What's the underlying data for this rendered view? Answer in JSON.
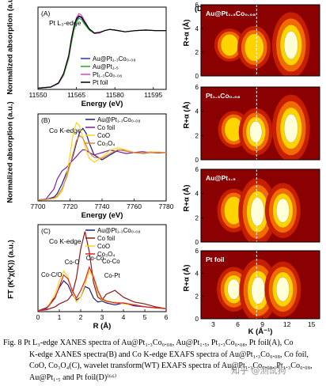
{
  "figure": {
    "caption_lines": [
      "Fig. 8   Pt L₃-edge XANES spectra of Au@Pt₁.₃Co₀.₀₈, Au@Pt₁.₅, Pt₁.₃Co₀.₀₈, Pt foil(A), Co",
      "K-edge XANES spectra(B) and Co K-edge EXAFS spectra of Au@Pt₁.₃Co₀.₀₈, Co foil,",
      "CoO, Co₃O₄(C), wavelet transform(WT) EXAFS spectra of Au@Pt₁.₃Co₀.₀₈, Pt₁.₃Co₀.₀₈,",
      "Au@Pt₁.₅ and Pt foil(D)⁽⁶⁶⁾"
    ],
    "watermark": "知乎 @测试狗"
  },
  "chart_data": [
    {
      "panel": "(A)",
      "type": "line",
      "annotation": "Pt L₃-edge",
      "xlabel": "Energy (eV)",
      "ylabel": "Normalized absorption (a.u.)",
      "xlim": [
        11550,
        11600
      ],
      "ylim": [
        0,
        1.4
      ],
      "x_ticks": [
        11550,
        11565,
        11580,
        11595
      ],
      "legend_position": "right",
      "x": [
        11550,
        11555,
        11558,
        11560,
        11562,
        11563,
        11564,
        11565,
        11566,
        11567,
        11568,
        11570,
        11572,
        11574,
        11576,
        11578,
        11580,
        11584,
        11588,
        11592,
        11596,
        11600
      ],
      "series": [
        {
          "name": "Au@Pt₁.₃Co₀.₀₈",
          "color": "#2233cc",
          "values": [
            0.02,
            0.04,
            0.1,
            0.25,
            0.55,
            0.8,
            1.02,
            1.18,
            1.24,
            1.22,
            1.15,
            1.02,
            0.95,
            0.96,
            1.0,
            1.02,
            1.01,
            0.98,
            1.0,
            1.01,
            1.0,
            1.0
          ]
        },
        {
          "name": "Au@Pt₁.₅",
          "color": "#1aa81a",
          "values": [
            0.02,
            0.04,
            0.1,
            0.24,
            0.53,
            0.78,
            1.0,
            1.15,
            1.21,
            1.19,
            1.12,
            1.01,
            0.95,
            0.96,
            1.0,
            1.02,
            1.01,
            0.98,
            1.0,
            1.01,
            1.0,
            1.0
          ]
        },
        {
          "name": "Pt₁.₃Co₀.₀₈",
          "color": "#e040c0",
          "values": [
            0.02,
            0.04,
            0.1,
            0.26,
            0.57,
            0.83,
            1.06,
            1.22,
            1.29,
            1.26,
            1.18,
            1.03,
            0.95,
            0.96,
            1.0,
            1.02,
            1.01,
            0.98,
            1.0,
            1.01,
            1.0,
            1.0
          ]
        },
        {
          "name": "Pt foil",
          "color": "#000000",
          "values": [
            0.02,
            0.04,
            0.11,
            0.27,
            0.58,
            0.85,
            1.07,
            1.2,
            1.25,
            1.23,
            1.16,
            1.03,
            0.96,
            0.97,
            1.0,
            1.02,
            1.01,
            0.98,
            1.0,
            1.01,
            1.0,
            1.0
          ]
        }
      ]
    },
    {
      "panel": "(B)",
      "type": "line",
      "annotation": "Co K-edge",
      "xlabel": "Energy (eV)",
      "ylabel": "Normalized absorption (a.u.)",
      "xlim": [
        7700,
        7780
      ],
      "ylim": [
        0,
        1.8
      ],
      "x_ticks": [
        7700,
        7720,
        7740,
        7760,
        7780
      ],
      "legend_position": "top-right",
      "x": [
        7700,
        7705,
        7710,
        7712,
        7715,
        7718,
        7720,
        7722,
        7724,
        7726,
        7728,
        7730,
        7732,
        7735,
        7740,
        7745,
        7750,
        7755,
        7760,
        7765,
        7770,
        7775,
        7780
      ],
      "series": [
        {
          "name": "Au@Pt₁.₃Co₀.₀₈",
          "color": "#1a1a8c",
          "values": [
            0.02,
            0.03,
            0.08,
            0.15,
            0.35,
            0.6,
            0.75,
            0.95,
            1.2,
            1.42,
            1.5,
            1.4,
            1.2,
            0.95,
            0.85,
            0.95,
            1.05,
            1.05,
            1.0,
            0.98,
            1.0,
            1.01,
            1.0
          ]
        },
        {
          "name": "Co foil",
          "color": "#7a1f9c",
          "values": [
            0.02,
            0.04,
            0.25,
            0.45,
            0.62,
            0.7,
            0.78,
            0.85,
            0.92,
            1.0,
            1.06,
            1.05,
            1.0,
            0.95,
            1.0,
            1.05,
            1.02,
            0.98,
            1.0,
            1.02,
            1.0,
            0.99,
            1.0
          ]
        },
        {
          "name": "CoO",
          "color": "#ffd21a",
          "values": [
            0.02,
            0.03,
            0.05,
            0.08,
            0.2,
            0.55,
            0.95,
            1.4,
            1.62,
            1.55,
            1.3,
            1.05,
            0.88,
            0.8,
            0.9,
            1.05,
            1.1,
            1.05,
            1.0,
            0.98,
            1.02,
            1.01,
            1.0
          ]
        },
        {
          "name": "Co₃O₄",
          "color": "#d9843a",
          "values": [
            0.02,
            0.03,
            0.06,
            0.1,
            0.25,
            0.5,
            0.75,
            1.0,
            1.25,
            1.35,
            1.3,
            1.15,
            1.0,
            0.9,
            0.88,
            0.98,
            1.06,
            1.03,
            1.0,
            0.99,
            1.0,
            1.0,
            1.0
          ]
        }
      ]
    },
    {
      "panel": "(C)",
      "type": "line",
      "annotation": "Co K-edge",
      "xlabel": "R (Å)",
      "ylabel": "FT (K²χ(K)) (a.u.)",
      "xlim": [
        0,
        6
      ],
      "ylim": [
        0,
        9
      ],
      "x_ticks": [
        0,
        1,
        2,
        3,
        4,
        5,
        6
      ],
      "legend_position": "top-right",
      "peak_labels": [
        "Co-O",
        "Co-C/O",
        "Co-Co",
        "Co-Co",
        "Co-Pt"
      ],
      "x": [
        0,
        0.4,
        0.8,
        1.0,
        1.2,
        1.4,
        1.6,
        1.8,
        2.0,
        2.2,
        2.4,
        2.6,
        2.8,
        3.0,
        3.2,
        3.6,
        4.0,
        4.5,
        5.0,
        5.5,
        6.0
      ],
      "series": [
        {
          "name": "Au@Pt₁.₃Co₀.₀₈",
          "color": "#1a1a8c",
          "values": [
            0.1,
            0.4,
            1.5,
            2.5,
            3.2,
            2.8,
            1.8,
            1.2,
            1.5,
            2.6,
            2.4,
            1.4,
            1.0,
            1.1,
            0.9,
            0.7,
            0.9,
            0.6,
            0.5,
            0.4,
            0.3
          ]
        },
        {
          "name": "Co foil",
          "color": "#8b1a1a",
          "values": [
            0.1,
            0.2,
            0.5,
            0.8,
            1.0,
            1.2,
            1.8,
            3.5,
            6.5,
            8.3,
            6.2,
            3.0,
            1.5,
            1.2,
            1.8,
            2.2,
            1.5,
            1.0,
            0.8,
            0.5,
            0.3
          ]
        },
        {
          "name": "CoO",
          "color": "#ffd21a",
          "values": [
            0.1,
            0.3,
            1.8,
            3.2,
            4.2,
            3.6,
            2.0,
            1.0,
            1.5,
            2.8,
            4.2,
            3.5,
            2.0,
            1.2,
            1.0,
            1.0,
            0.8,
            0.7,
            0.5,
            0.4,
            0.3
          ]
        },
        {
          "name": "Co₃O₄",
          "color": "#e02020",
          "values": [
            0.1,
            0.3,
            1.4,
            2.6,
            3.8,
            3.4,
            2.2,
            1.4,
            2.2,
            3.2,
            4.6,
            3.6,
            2.2,
            1.3,
            1.1,
            0.9,
            0.9,
            0.7,
            0.5,
            0.4,
            0.3
          ]
        }
      ]
    },
    {
      "panel": "(D)",
      "type": "heatmap",
      "xlabel": "K (Å⁻¹)",
      "ylabel": "R+α (Å)",
      "xlim": [
        1.5,
        16
      ],
      "ylim": [
        0,
        6
      ],
      "x_ticks": [
        3,
        6,
        9,
        12,
        15
      ],
      "y_ticks": [
        0,
        2,
        4,
        6
      ],
      "dashed_line_k": 8.3,
      "colormap": [
        "#8b0000",
        "#c81e00",
        "#f26a00",
        "#ffd400",
        "#ffffd8"
      ],
      "subplots": [
        {
          "label": "Au@Pt₁.₃Co₀.₀₈",
          "blobs": [
            {
              "k": 5,
              "r": 2.6,
              "i": 0.55
            },
            {
              "k": 8,
              "r": 2.4,
              "i": 0.7
            },
            {
              "k": 12.5,
              "r": 2.6,
              "i": 1.0
            }
          ]
        },
        {
          "label": "Pt₁.₃Co₀.₀₈",
          "blobs": [
            {
              "k": 5.5,
              "r": 2.5,
              "i": 0.6
            },
            {
              "k": 8.2,
              "r": 2.3,
              "i": 0.75
            },
            {
              "k": 12.5,
              "r": 2.6,
              "i": 1.0
            }
          ]
        },
        {
          "label": "Au@Pt₁.₅",
          "blobs": [
            {
              "k": 5.5,
              "r": 2.6,
              "i": 0.7
            },
            {
              "k": 8.4,
              "r": 2.5,
              "i": 1.0
            },
            {
              "k": 11.5,
              "r": 2.6,
              "i": 0.85
            }
          ]
        },
        {
          "label": "Pt foil",
          "blobs": [
            {
              "k": 5.5,
              "r": 2.6,
              "i": 0.75
            },
            {
              "k": 8.5,
              "r": 2.5,
              "i": 1.0
            },
            {
              "k": 11.5,
              "r": 2.6,
              "i": 0.9
            }
          ]
        }
      ]
    }
  ]
}
